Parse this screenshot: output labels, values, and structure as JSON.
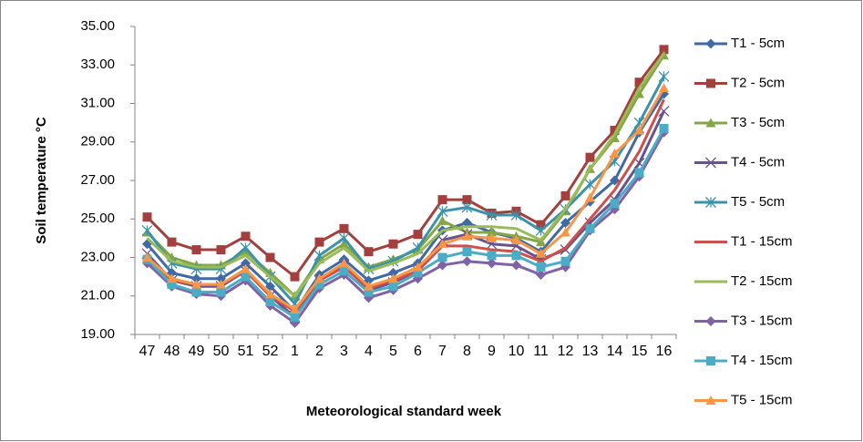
{
  "chart_data": {
    "type": "line",
    "y_label": "Soil temperature °C",
    "x_label": "Meteorological standard week",
    "categories": [
      "47",
      "48",
      "49",
      "50",
      "51",
      "52",
      "1",
      "2",
      "3",
      "4",
      "5",
      "6",
      "7",
      "8",
      "9",
      "10",
      "11",
      "12",
      "13",
      "14",
      "15",
      "16"
    ],
    "ylim": [
      19,
      35
    ],
    "yticks": [
      {
        "value": 19,
        "label": "19.00"
      },
      {
        "value": 21,
        "label": "21.00"
      },
      {
        "value": 23,
        "label": "23.00"
      },
      {
        "value": 25,
        "label": "25.00"
      },
      {
        "value": 27,
        "label": "27.00"
      },
      {
        "value": 29,
        "label": "29.00"
      },
      {
        "value": 31,
        "label": "31.00"
      },
      {
        "value": 33,
        "label": "33.00"
      },
      {
        "value": 35,
        "label": "35.00"
      }
    ],
    "grid": false,
    "legend": "right",
    "series": [
      {
        "name": "T1 - 5cm",
        "color": "#3f6aa6",
        "marker": "diamond",
        "values": [
          23.7,
          22.2,
          21.9,
          21.9,
          22.7,
          21.5,
          20.2,
          22.1,
          22.9,
          21.8,
          22.2,
          22.7,
          24.4,
          24.8,
          24.3,
          24.0,
          23.3,
          24.8,
          25.9,
          27.0,
          29.5,
          31.5
        ]
      },
      {
        "name": "T2 - 5cm",
        "color": "#a3403d",
        "marker": "square",
        "values": [
          25.1,
          23.8,
          23.4,
          23.4,
          24.1,
          23.0,
          22.0,
          23.8,
          24.5,
          23.3,
          23.7,
          24.2,
          26.0,
          26.0,
          25.3,
          25.4,
          24.7,
          26.2,
          28.2,
          29.6,
          32.1,
          33.8
        ]
      },
      {
        "name": "T3 - 5cm",
        "color": "#84a645",
        "marker": "triangle",
        "values": [
          24.3,
          23.0,
          22.6,
          22.6,
          23.3,
          22.2,
          21.0,
          22.9,
          23.7,
          22.5,
          22.9,
          23.4,
          24.9,
          24.3,
          24.3,
          24.1,
          23.8,
          25.4,
          27.6,
          29.2,
          31.5,
          33.5
        ]
      },
      {
        "name": "T4 - 5cm",
        "color": "#6a528e",
        "marker": "x",
        "values": [
          23.2,
          21.8,
          21.5,
          21.5,
          22.3,
          21.0,
          19.9,
          21.8,
          22.6,
          21.3,
          21.7,
          22.3,
          23.9,
          24.2,
          23.7,
          23.6,
          22.9,
          23.4,
          24.8,
          26.0,
          27.9,
          30.6
        ]
      },
      {
        "name": "T5 - 5cm",
        "color": "#3b93ab",
        "marker": "star",
        "values": [
          24.4,
          22.7,
          22.4,
          22.4,
          23.5,
          22.0,
          20.6,
          23.1,
          24.0,
          22.4,
          22.8,
          23.5,
          25.4,
          25.6,
          25.2,
          25.2,
          24.4,
          25.5,
          26.8,
          28.0,
          30.0,
          32.4
        ]
      },
      {
        "name": "T1 - 15cm",
        "color": "#cf4f4a",
        "marker": "none",
        "values": [
          23.0,
          21.8,
          21.6,
          21.6,
          22.3,
          21.0,
          20.2,
          21.8,
          22.5,
          21.4,
          21.8,
          22.3,
          23.6,
          23.6,
          23.4,
          23.3,
          22.8,
          23.5,
          25.0,
          26.5,
          28.5,
          31.2
        ]
      },
      {
        "name": "T2 - 15cm",
        "color": "#9bbb59",
        "marker": "none",
        "values": [
          24.0,
          22.8,
          22.5,
          22.5,
          23.1,
          22.0,
          21.0,
          22.7,
          23.5,
          22.3,
          22.7,
          23.2,
          24.4,
          24.6,
          24.6,
          24.5,
          23.9,
          25.5,
          27.6,
          29.4,
          31.8,
          33.6
        ]
      },
      {
        "name": "T3 - 15cm",
        "color": "#7f62a8",
        "marker": "diamond",
        "values": [
          22.7,
          21.5,
          21.1,
          21.0,
          21.8,
          20.5,
          19.6,
          21.4,
          22.1,
          20.9,
          21.3,
          21.9,
          22.6,
          22.8,
          22.7,
          22.6,
          22.1,
          22.5,
          24.4,
          25.5,
          27.2,
          29.5
        ]
      },
      {
        "name": "T4 - 15cm",
        "color": "#4bacc6",
        "marker": "square",
        "values": [
          22.9,
          21.6,
          21.2,
          21.2,
          22.0,
          20.7,
          19.9,
          21.6,
          22.3,
          21.2,
          21.5,
          22.2,
          23.0,
          23.3,
          23.1,
          23.1,
          22.5,
          22.8,
          24.5,
          25.8,
          27.4,
          29.7
        ]
      },
      {
        "name": "T5 - 15cm",
        "color": "#f79646",
        "marker": "triangle",
        "values": [
          23.0,
          21.9,
          21.6,
          21.6,
          22.4,
          21.1,
          20.3,
          21.9,
          22.7,
          21.5,
          21.9,
          22.5,
          23.7,
          24.1,
          24.0,
          23.9,
          23.2,
          24.3,
          26.1,
          28.4,
          29.6,
          31.8
        ]
      }
    ]
  }
}
